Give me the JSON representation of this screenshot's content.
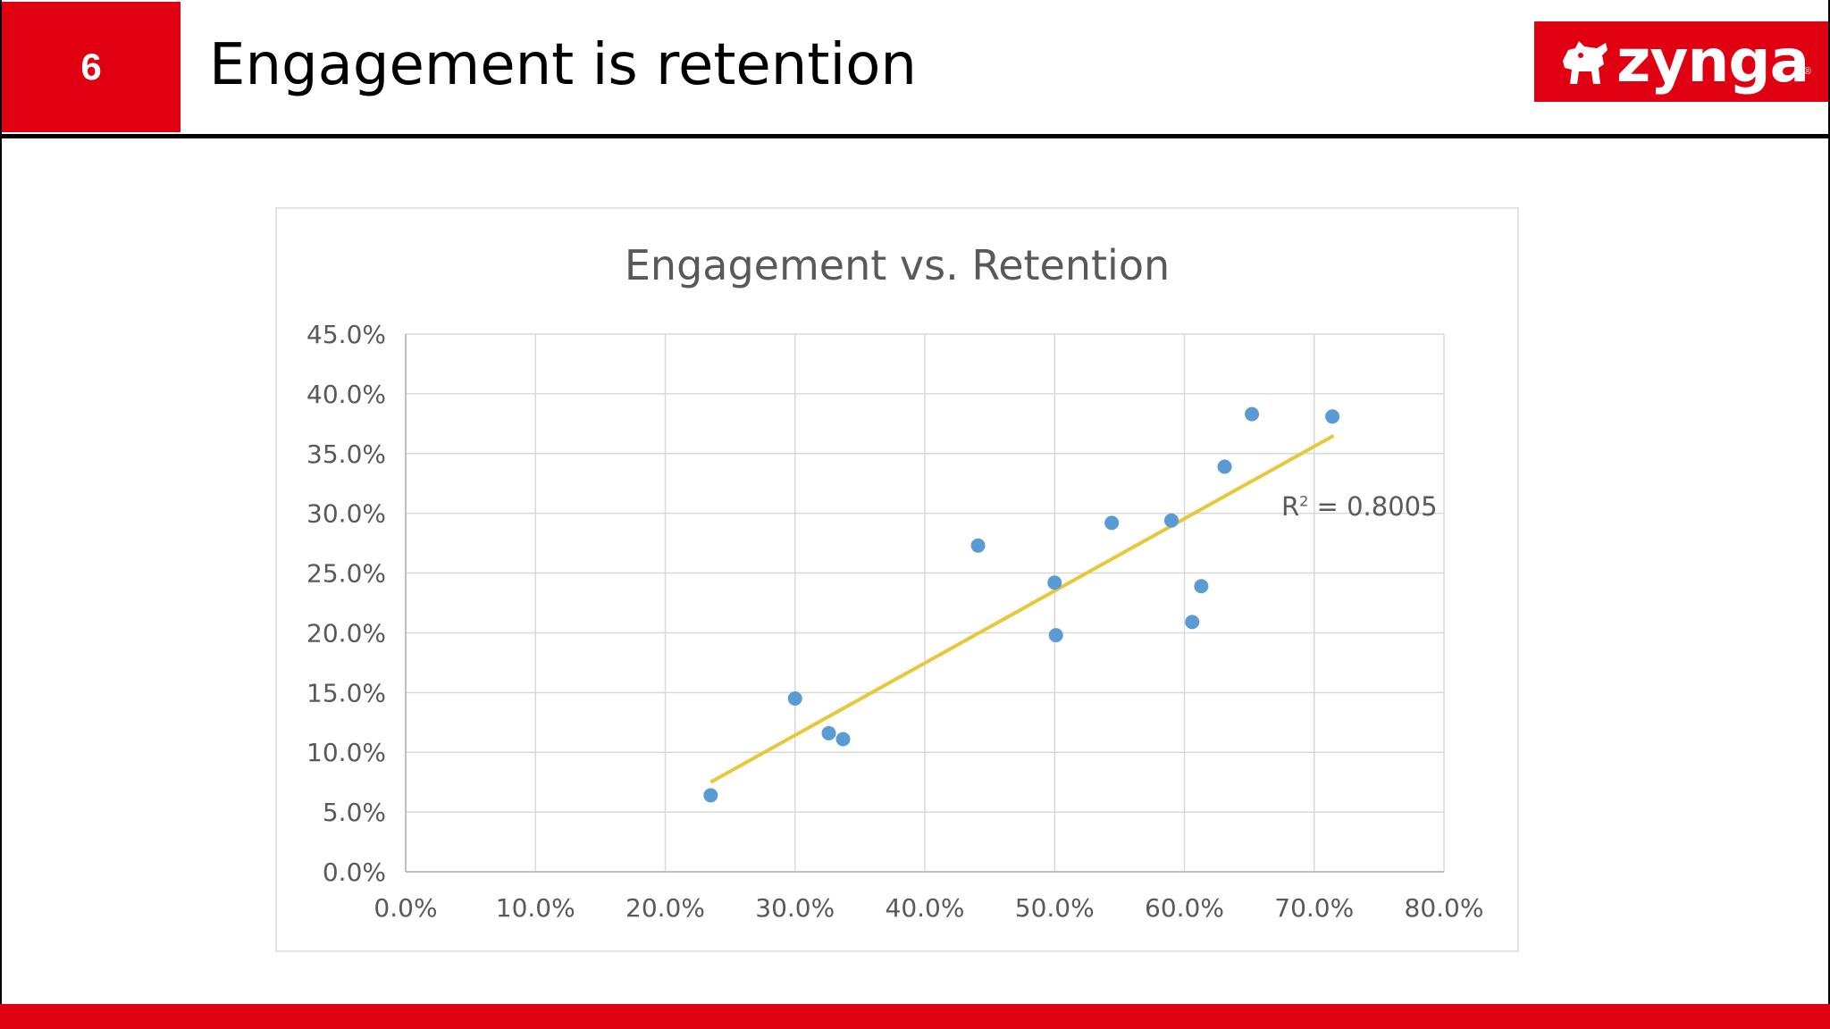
{
  "slide": {
    "number": "6",
    "title": "Engagement is retention",
    "logo": {
      "text": "zynga",
      "registered": "®",
      "icon": "dog-icon"
    },
    "colors": {
      "brand_red": "#e00012",
      "header_rule": "#000000"
    }
  },
  "chart_data": {
    "type": "scatter",
    "title": "Engagement vs. Retention",
    "xlabel": "",
    "ylabel": "",
    "xlim": [
      0,
      0.8
    ],
    "ylim": [
      0,
      0.45
    ],
    "x_ticks": [
      "0.0%",
      "10.0%",
      "20.0%",
      "30.0%",
      "40.0%",
      "50.0%",
      "60.0%",
      "70.0%",
      "80.0%"
    ],
    "y_ticks": [
      "0.0%",
      "5.0%",
      "10.0%",
      "15.0%",
      "20.0%",
      "25.0%",
      "30.0%",
      "35.0%",
      "40.0%",
      "45.0%"
    ],
    "grid": true,
    "legend": "none",
    "point_color": "#5b9bd5",
    "trendline": {
      "type": "linear",
      "color": "#e6c83a",
      "x_range": [
        0.235,
        0.715
      ],
      "y_range": [
        0.075,
        0.365
      ],
      "r2_text": "R",
      "r2_exp": "2",
      "r2_value": " = 0.8005"
    },
    "points": [
      {
        "x": 0.235,
        "y": 0.064
      },
      {
        "x": 0.3,
        "y": 0.145
      },
      {
        "x": 0.326,
        "y": 0.116
      },
      {
        "x": 0.337,
        "y": 0.111
      },
      {
        "x": 0.441,
        "y": 0.273
      },
      {
        "x": 0.5,
        "y": 0.242
      },
      {
        "x": 0.501,
        "y": 0.198
      },
      {
        "x": 0.544,
        "y": 0.292
      },
      {
        "x": 0.59,
        "y": 0.294
      },
      {
        "x": 0.606,
        "y": 0.209
      },
      {
        "x": 0.613,
        "y": 0.239
      },
      {
        "x": 0.631,
        "y": 0.339
      },
      {
        "x": 0.652,
        "y": 0.383
      },
      {
        "x": 0.714,
        "y": 0.381
      }
    ]
  }
}
